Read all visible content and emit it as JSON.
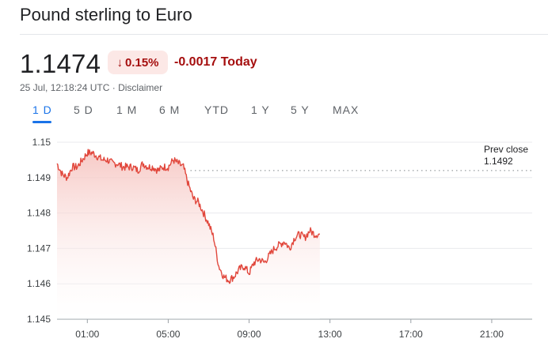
{
  "header": {
    "title": "Pound sterling to Euro"
  },
  "quote": {
    "price": "1.1474",
    "change_pct": "0.15%",
    "change_arrow": "down-arrow-icon",
    "change_abs": "-0.0017 Today",
    "timestamp": "25 Jul, 12:18:24 UTC",
    "separator": " · ",
    "disclaimer": "Disclaimer"
  },
  "tabs": [
    {
      "label": "1 D",
      "active": true
    },
    {
      "label": "5 D",
      "active": false
    },
    {
      "label": "1 M",
      "active": false
    },
    {
      "label": "6 M",
      "active": false
    },
    {
      "label": "YTD",
      "active": false
    },
    {
      "label": "1 Y",
      "active": false
    },
    {
      "label": "5 Y",
      "active": false
    },
    {
      "label": "MAX",
      "active": false
    }
  ],
  "colors": {
    "line": "#e1473c",
    "fill_top": "#f6c3bf",
    "down": "#a50e0e",
    "accent": "#1a73e8"
  },
  "chart_data": {
    "type": "area",
    "xlabel": "",
    "ylabel": "",
    "x_ticks": [
      "01:00",
      "05:00",
      "09:00",
      "13:00",
      "17:00",
      "21:00"
    ],
    "y_ticks": [
      "1.15",
      "1.149",
      "1.148",
      "1.147",
      "1.146",
      "1.145"
    ],
    "ylim": [
      1.145,
      1.15
    ],
    "xlim_hours": [
      -0.5,
      23
    ],
    "grid": true,
    "reference_line": {
      "label": "Prev close",
      "value_label": "1.1492",
      "value": 1.1492
    },
    "x": [
      -0.5,
      -0.25,
      0,
      0.25,
      0.5,
      0.75,
      1,
      1.25,
      1.5,
      1.75,
      2,
      2.25,
      2.5,
      2.75,
      3,
      3.25,
      3.5,
      3.75,
      4,
      4.25,
      4.5,
      4.75,
      5,
      5.25,
      5.5,
      5.75,
      6,
      6.25,
      6.5,
      6.75,
      7,
      7.25,
      7.5,
      7.75,
      8,
      8.25,
      8.5,
      8.75,
      9,
      9.25,
      9.5,
      9.75,
      10,
      10.25,
      10.5,
      10.75,
      11,
      11.25,
      11.5,
      11.75,
      12,
      12.25,
      12.5
    ],
    "values": [
      1.1494,
      1.1491,
      1.149,
      1.1493,
      1.1493,
      1.1495,
      1.1497,
      1.1497,
      1.1496,
      1.1495,
      1.1495,
      1.1494,
      1.1494,
      1.1493,
      1.1493,
      1.1493,
      1.1492,
      1.1494,
      1.1493,
      1.1493,
      1.1492,
      1.1493,
      1.1493,
      1.1495,
      1.1494,
      1.1493,
      1.1488,
      1.1484,
      1.1483,
      1.148,
      1.1477,
      1.1473,
      1.1465,
      1.1462,
      1.1461,
      1.1462,
      1.1464,
      1.1465,
      1.1463,
      1.1466,
      1.1467,
      1.1466,
      1.1468,
      1.147,
      1.1471,
      1.1472,
      1.147,
      1.1473,
      1.1474,
      1.1473,
      1.1475,
      1.1474,
      1.1474
    ]
  }
}
